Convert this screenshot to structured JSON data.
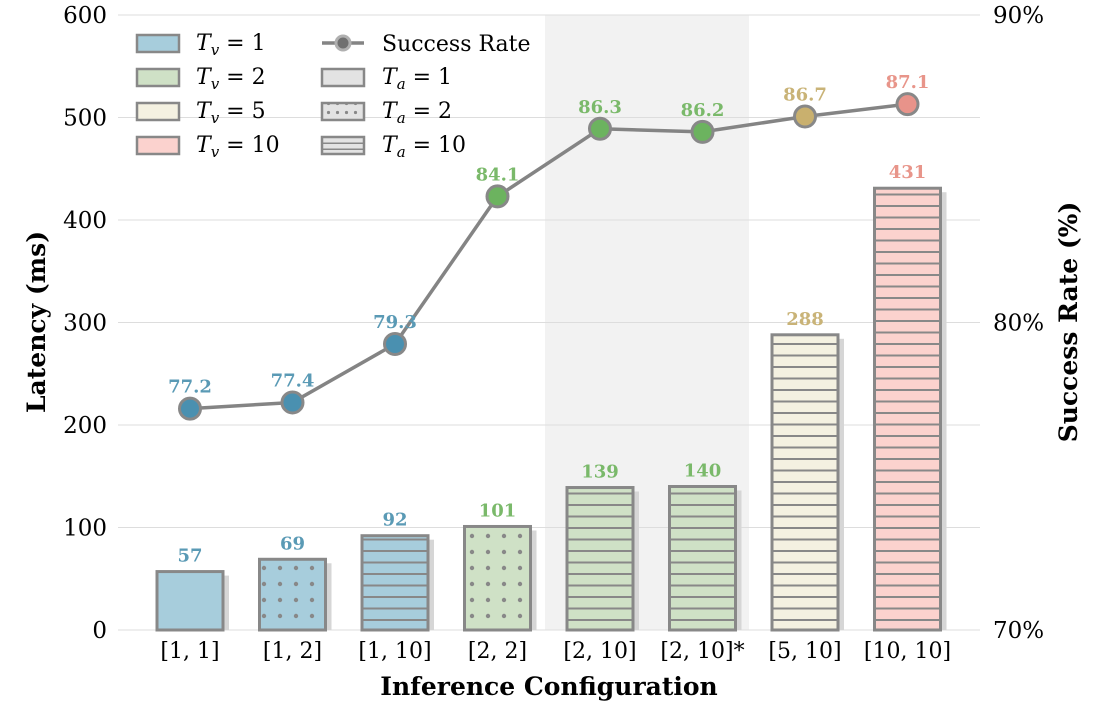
{
  "chart_data": {
    "type": "bar",
    "xlabel": "Inference Configuration",
    "ylabel": "Latency (ms)",
    "y2label": "Success Rate (%)",
    "ylim": [
      0,
      600
    ],
    "y2lim": [
      70,
      90
    ],
    "yticks": [
      "0",
      "100",
      "200",
      "300",
      "400",
      "500",
      "600"
    ],
    "y2ticks": [
      "70%",
      "80%",
      "90%"
    ],
    "grid": true,
    "legend_position": "top-left",
    "categories": [
      "[1, 1]",
      "[1, 2]",
      "[1, 10]",
      "[2, 2]",
      "[2, 10]",
      "[2, 10]*",
      "[5, 10]",
      "[10, 10]"
    ],
    "latency": [
      57,
      69,
      92,
      101,
      139,
      140,
      288,
      431
    ],
    "latency_labels": [
      "57",
      "69",
      "92",
      "101",
      "139",
      "140",
      "288",
      "431"
    ],
    "success_rate": [
      77.2,
      77.4,
      79.3,
      84.1,
      86.3,
      86.2,
      86.7,
      87.1
    ],
    "success_labels": [
      "77.2",
      "77.4",
      "79.3",
      "84.1",
      "86.3",
      "86.2",
      "86.7",
      "87.1"
    ],
    "tv": [
      1,
      1,
      1,
      2,
      2,
      2,
      5,
      10
    ],
    "ta": [
      1,
      2,
      10,
      2,
      10,
      10,
      10,
      10
    ],
    "highlighted_categories": [
      "[2, 10]",
      "[2, 10]*"
    ],
    "tv_colors": {
      "1": "#a7cddc",
      "2": "#cfe1c6",
      "5": "#f4f1e1",
      "10": "#fbd2ce"
    },
    "tv_label_colors": {
      "1": "#5a9ab5",
      "2": "#7ab96a",
      "5": "#c9b377",
      "10": "#e8958a"
    },
    "marker_colors": {
      "1": "#4a90b0",
      "2": "#6cb35f",
      "5": "#c9b06e",
      "10": "#e8938a"
    },
    "line_color": "#848484",
    "legend": {
      "tv": [
        {
          "sym": "T",
          "sub": "v",
          "value": "= 1",
          "key": "1"
        },
        {
          "sym": "T",
          "sub": "v",
          "value": "= 2",
          "key": "2"
        },
        {
          "sym": "T",
          "sub": "v",
          "value": "= 5",
          "key": "5"
        },
        {
          "sym": "T",
          "sub": "v",
          "value": "= 10",
          "key": "10"
        }
      ],
      "success": "Success Rate",
      "ta": [
        {
          "sym": "T",
          "sub": "a",
          "value": "= 1",
          "pattern": "none"
        },
        {
          "sym": "T",
          "sub": "a",
          "value": "= 2",
          "pattern": "dots"
        },
        {
          "sym": "T",
          "sub": "a",
          "value": "= 10",
          "pattern": "hlines"
        }
      ]
    }
  }
}
